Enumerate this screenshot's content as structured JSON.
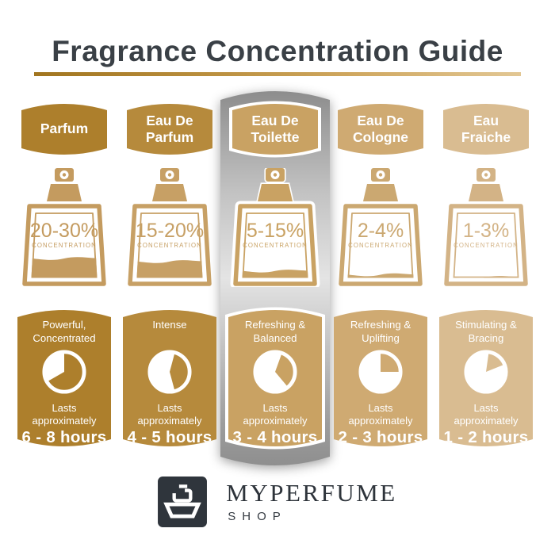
{
  "title": "Fragrance Concentration Guide",
  "shared": {
    "concentration_label": "CONCENTRATION",
    "lasts_label": "Lasts approximately"
  },
  "columns": [
    {
      "header": "Parfum",
      "concentration": "20-30%",
      "fill_pct": 38,
      "trait": "Powerful, Concentrated",
      "duration": "6 - 8 hours",
      "highlighted": false,
      "clock": {
        "gold_start": 0,
        "gold_end": 240
      },
      "colors": {
        "theme": "#ad7f2c",
        "bottle": "#c49b5f"
      }
    },
    {
      "header": "Eau De Parfum",
      "concentration": "15-20%",
      "fill_pct": 33,
      "trait": "Intense",
      "duration": "4 - 5 hours",
      "highlighted": false,
      "clock": {
        "gold_start": 15,
        "gold_end": 165
      },
      "colors": {
        "theme": "#b68a3c",
        "bottle": "#c7a065"
      }
    },
    {
      "header": "Eau De Toilette",
      "concentration": "5-15%",
      "fill_pct": 18,
      "trait": "Refreshing & Balanced",
      "duration": "3 - 4 hours",
      "highlighted": true,
      "clock": {
        "gold_start": 20,
        "gold_end": 140
      },
      "colors": {
        "theme": "#c9a263",
        "bottle": "#c9a263"
      }
    },
    {
      "header": "Eau De Cologne",
      "concentration": "2-4%",
      "fill_pct": 12,
      "trait": "Refreshing & Uplifting",
      "duration": "2 - 3 hours",
      "highlighted": false,
      "clock": {
        "gold_start": 0,
        "gold_end": 90
      },
      "colors": {
        "theme": "#cfaa72",
        "bottle": "#cba871"
      }
    },
    {
      "header": "Eau Fraiche",
      "concentration": "1-3%",
      "fill_pct": 8,
      "trait": "Stimulating & Bracing",
      "duration": "1 - 2 hours",
      "highlighted": false,
      "clock": {
        "gold_start": 8,
        "gold_end": 68
      },
      "colors": {
        "theme": "#d9bc91",
        "bottle": "#d3b386"
      }
    }
  ],
  "highlight": {
    "column": "Eau De Toilette",
    "strip_top_color": "#8a8a8a",
    "strip_mid_color": "#e4e4e4"
  },
  "logo": {
    "brand": "MYPERFUME",
    "sub": "SHOP"
  }
}
